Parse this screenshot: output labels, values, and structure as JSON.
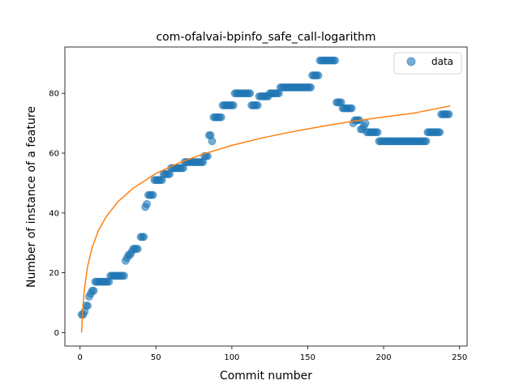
{
  "chart_data": {
    "type": "scatter",
    "title": "com-ofalvai-bpinfo_safe_call-logarithm",
    "xlabel": "Commit number",
    "ylabel": "Number of instance of a feature",
    "xlim": [
      -10,
      255
    ],
    "ylim": [
      -4.5,
      95.5
    ],
    "xticks": [
      0,
      50,
      100,
      150,
      200,
      250
    ],
    "yticks": [
      0,
      20,
      40,
      60,
      80
    ],
    "legend": {
      "position": "top-right",
      "entries": [
        "data"
      ]
    },
    "colors": {
      "data": "#1f77b4",
      "fit": "#ff7f0e"
    },
    "grid": false,
    "series": [
      {
        "name": "data",
        "kind": "scatter",
        "points": [
          [
            1,
            6
          ],
          [
            2,
            6
          ],
          [
            3,
            7
          ],
          [
            4,
            9
          ],
          [
            5,
            9
          ],
          [
            6,
            12
          ],
          [
            7,
            13
          ],
          [
            8,
            14
          ],
          [
            9,
            14
          ],
          [
            10,
            17
          ],
          [
            11,
            17
          ],
          [
            12,
            17
          ],
          [
            13,
            17
          ],
          [
            14,
            17
          ],
          [
            15,
            17
          ],
          [
            16,
            17
          ],
          [
            17,
            17
          ],
          [
            18,
            17
          ],
          [
            19,
            17
          ],
          [
            20,
            19
          ],
          [
            21,
            19
          ],
          [
            22,
            19
          ],
          [
            23,
            19
          ],
          [
            24,
            19
          ],
          [
            25,
            19
          ],
          [
            26,
            19
          ],
          [
            27,
            19
          ],
          [
            28,
            19
          ],
          [
            29,
            19
          ],
          [
            30,
            24
          ],
          [
            31,
            25
          ],
          [
            32,
            26
          ],
          [
            33,
            26
          ],
          [
            34,
            27
          ],
          [
            35,
            28
          ],
          [
            36,
            28
          ],
          [
            37,
            28
          ],
          [
            38,
            28
          ],
          [
            40,
            32
          ],
          [
            41,
            32
          ],
          [
            42,
            32
          ],
          [
            43,
            42
          ],
          [
            44,
            43
          ],
          [
            45,
            46
          ],
          [
            46,
            46
          ],
          [
            47,
            46
          ],
          [
            48,
            46
          ],
          [
            49,
            51
          ],
          [
            50,
            51
          ],
          [
            51,
            51
          ],
          [
            52,
            51
          ],
          [
            53,
            51
          ],
          [
            54,
            51
          ],
          [
            55,
            53
          ],
          [
            56,
            53
          ],
          [
            57,
            53
          ],
          [
            58,
            53
          ],
          [
            59,
            53
          ],
          [
            60,
            55
          ],
          [
            61,
            55
          ],
          [
            62,
            55
          ],
          [
            63,
            55
          ],
          [
            64,
            55
          ],
          [
            65,
            55
          ],
          [
            66,
            55
          ],
          [
            67,
            55
          ],
          [
            68,
            55
          ],
          [
            69,
            57
          ],
          [
            70,
            57
          ],
          [
            71,
            57
          ],
          [
            72,
            57
          ],
          [
            73,
            57
          ],
          [
            74,
            57
          ],
          [
            75,
            57
          ],
          [
            76,
            57
          ],
          [
            77,
            57
          ],
          [
            78,
            57
          ],
          [
            79,
            57
          ],
          [
            80,
            57
          ],
          [
            81,
            57
          ],
          [
            82,
            59
          ],
          [
            83,
            59
          ],
          [
            84,
            59
          ],
          [
            85,
            66
          ],
          [
            86,
            66
          ],
          [
            87,
            64
          ],
          [
            88,
            72
          ],
          [
            89,
            72
          ],
          [
            90,
            72
          ],
          [
            91,
            72
          ],
          [
            92,
            72
          ],
          [
            93,
            72
          ],
          [
            94,
            76
          ],
          [
            95,
            76
          ],
          [
            96,
            76
          ],
          [
            97,
            76
          ],
          [
            98,
            76
          ],
          [
            99,
            76
          ],
          [
            100,
            76
          ],
          [
            101,
            76
          ],
          [
            102,
            80
          ],
          [
            103,
            80
          ],
          [
            104,
            80
          ],
          [
            105,
            80
          ],
          [
            106,
            80
          ],
          [
            107,
            80
          ],
          [
            108,
            80
          ],
          [
            109,
            80
          ],
          [
            110,
            80
          ],
          [
            111,
            80
          ],
          [
            112,
            80
          ],
          [
            113,
            76
          ],
          [
            114,
            76
          ],
          [
            115,
            76
          ],
          [
            116,
            76
          ],
          [
            117,
            76
          ],
          [
            118,
            79
          ],
          [
            119,
            79
          ],
          [
            120,
            79
          ],
          [
            121,
            79
          ],
          [
            122,
            79
          ],
          [
            123,
            79
          ],
          [
            124,
            79
          ],
          [
            125,
            80
          ],
          [
            126,
            80
          ],
          [
            127,
            80
          ],
          [
            128,
            80
          ],
          [
            129,
            80
          ],
          [
            130,
            80
          ],
          [
            131,
            80
          ],
          [
            132,
            82
          ],
          [
            133,
            82
          ],
          [
            134,
            82
          ],
          [
            135,
            82
          ],
          [
            136,
            82
          ],
          [
            137,
            82
          ],
          [
            138,
            82
          ],
          [
            139,
            82
          ],
          [
            140,
            82
          ],
          [
            141,
            82
          ],
          [
            142,
            82
          ],
          [
            143,
            82
          ],
          [
            144,
            82
          ],
          [
            145,
            82
          ],
          [
            146,
            82
          ],
          [
            147,
            82
          ],
          [
            148,
            82
          ],
          [
            149,
            82
          ],
          [
            150,
            82
          ],
          [
            151,
            82
          ],
          [
            152,
            82
          ],
          [
            153,
            86
          ],
          [
            154,
            86
          ],
          [
            155,
            86
          ],
          [
            156,
            86
          ],
          [
            157,
            86
          ],
          [
            158,
            91
          ],
          [
            159,
            91
          ],
          [
            160,
            91
          ],
          [
            161,
            91
          ],
          [
            162,
            91
          ],
          [
            163,
            91
          ],
          [
            164,
            91
          ],
          [
            165,
            91
          ],
          [
            166,
            91
          ],
          [
            167,
            91
          ],
          [
            168,
            91
          ],
          [
            169,
            77
          ],
          [
            170,
            77
          ],
          [
            171,
            77
          ],
          [
            172,
            77
          ],
          [
            173,
            75
          ],
          [
            174,
            75
          ],
          [
            175,
            75
          ],
          [
            176,
            75
          ],
          [
            177,
            75
          ],
          [
            178,
            75
          ],
          [
            179,
            75
          ],
          [
            180,
            70
          ],
          [
            181,
            71
          ],
          [
            182,
            71
          ],
          [
            183,
            71
          ],
          [
            184,
            71
          ],
          [
            185,
            68
          ],
          [
            186,
            68
          ],
          [
            187,
            69
          ],
          [
            188,
            70
          ],
          [
            189,
            67
          ],
          [
            190,
            67
          ],
          [
            191,
            67
          ],
          [
            192,
            67
          ],
          [
            193,
            67
          ],
          [
            194,
            67
          ],
          [
            195,
            67
          ],
          [
            196,
            67
          ],
          [
            197,
            64
          ],
          [
            198,
            64
          ],
          [
            199,
            64
          ],
          [
            200,
            64
          ],
          [
            201,
            64
          ],
          [
            202,
            64
          ],
          [
            203,
            64
          ],
          [
            204,
            64
          ],
          [
            205,
            64
          ],
          [
            206,
            64
          ],
          [
            207,
            64
          ],
          [
            208,
            64
          ],
          [
            209,
            64
          ],
          [
            210,
            64
          ],
          [
            211,
            64
          ],
          [
            212,
            64
          ],
          [
            213,
            64
          ],
          [
            214,
            64
          ],
          [
            215,
            64
          ],
          [
            216,
            64
          ],
          [
            217,
            64
          ],
          [
            218,
            64
          ],
          [
            219,
            64
          ],
          [
            220,
            64
          ],
          [
            221,
            64
          ],
          [
            222,
            64
          ],
          [
            223,
            64
          ],
          [
            224,
            64
          ],
          [
            225,
            64
          ],
          [
            226,
            64
          ],
          [
            227,
            64
          ],
          [
            228,
            64
          ],
          [
            229,
            67
          ],
          [
            230,
            67
          ],
          [
            231,
            67
          ],
          [
            232,
            67
          ],
          [
            233,
            67
          ],
          [
            234,
            67
          ],
          [
            235,
            67
          ],
          [
            236,
            67
          ],
          [
            237,
            67
          ],
          [
            238,
            73
          ],
          [
            239,
            73
          ],
          [
            240,
            73
          ],
          [
            241,
            73
          ],
          [
            242,
            73
          ],
          [
            243,
            73
          ]
        ]
      },
      {
        "kind": "line",
        "points": [
          [
            1,
            0
          ],
          [
            2,
            9.5
          ],
          [
            3,
            15.1
          ],
          [
            5,
            22.2
          ],
          [
            8,
            28.5
          ],
          [
            12,
            34.0
          ],
          [
            17,
            38.6
          ],
          [
            25,
            43.8
          ],
          [
            35,
            48.3
          ],
          [
            50,
            53.2
          ],
          [
            65,
            56.7
          ],
          [
            80,
            59.5
          ],
          [
            100,
            62.6
          ],
          [
            120,
            65.1
          ],
          [
            140,
            67.2
          ],
          [
            160,
            69.0
          ],
          [
            180,
            70.7
          ],
          [
            200,
            72.1
          ],
          [
            220,
            73.4
          ],
          [
            244,
            75.8
          ]
        ]
      }
    ]
  }
}
